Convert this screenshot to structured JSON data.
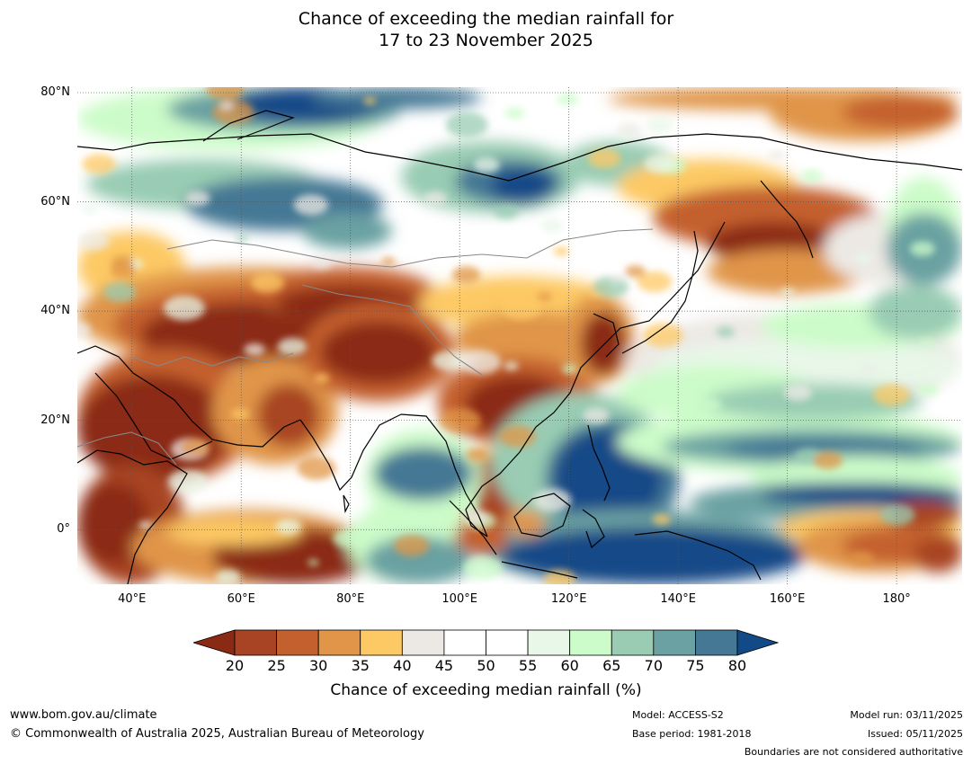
{
  "title": {
    "line1": "Chance of exceeding the median rainfall for",
    "line2": "17 to 23 November 2025"
  },
  "map": {
    "lat_labels": [
      "80°N",
      "60°N",
      "40°N",
      "20°N",
      "0°"
    ],
    "lon_labels": [
      "40°E",
      "60°E",
      "80°E",
      "100°E",
      "120°E",
      "140°E",
      "160°E",
      "180°"
    ],
    "lon_range": [
      30,
      192
    ],
    "lat_range": [
      -10,
      81
    ]
  },
  "legend": {
    "ticks": [
      "20",
      "25",
      "30",
      "35",
      "40",
      "45",
      "50",
      "55",
      "60",
      "65",
      "70",
      "75",
      "80"
    ],
    "colors": {
      "below20": "#8b2a14",
      "c20_25": "#a84424",
      "c25_30": "#c4602e",
      "c30_35": "#e09548",
      "c35_40": "#fdc965",
      "c40_45": "#ece9e4",
      "c45_55": "#ffffff",
      "c55_60": "#e8f7e8",
      "c60_65": "#ccfcc9",
      "c65_70": "#99ccb3",
      "c70_75": "#6ba1a2",
      "c75_80": "#447894",
      "above80": "#124a87"
    },
    "title": "Chance of exceeding median rainfall (%)"
  },
  "footer": {
    "website": "www.bom.gov.au/climate",
    "copyright": "© Commonwealth of Australia 2025, Australian Bureau of Meteorology",
    "model": "Model: ACCESS-S2",
    "base_period": "Base period: 1981-2018",
    "model_run": "Model run: 03/11/2025",
    "issued": "Issued: 05/11/2025",
    "disclaimer": "Boundaries are not considered authoritative"
  }
}
